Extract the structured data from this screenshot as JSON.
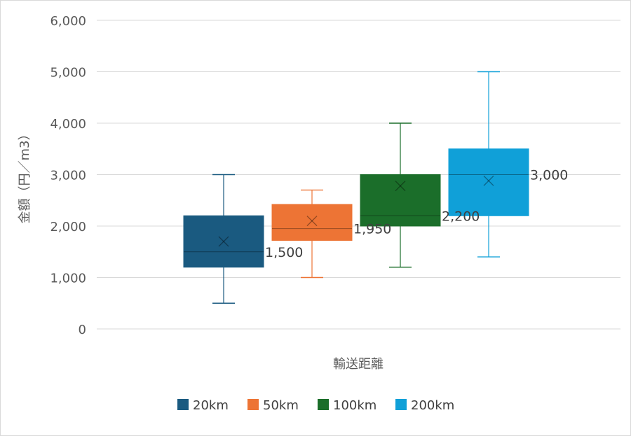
{
  "chart_data": {
    "type": "boxplot",
    "title": "",
    "xlabel": "輸送距離",
    "ylabel": "金額（円／m3）",
    "ylim": [
      0,
      6000
    ],
    "y_ticks": [
      0,
      1000,
      2000,
      3000,
      4000,
      5000,
      6000
    ],
    "y_tick_labels": [
      "0",
      "1,000",
      "2,000",
      "3,000",
      "4,000",
      "5,000",
      "6,000"
    ],
    "grid": true,
    "legend_position": "bottom",
    "series": [
      {
        "name": "20km",
        "color": "#1a5a80",
        "min": 500,
        "q1": 1200,
        "median": 1500,
        "q3": 2200,
        "max": 3000,
        "mean": 1700,
        "median_label": "1,500"
      },
      {
        "name": "50km",
        "color": "#ed7435",
        "min": 1000,
        "q1": 1720,
        "median": 1950,
        "q3": 2420,
        "max": 2700,
        "mean": 2100,
        "median_label": "1,950"
      },
      {
        "name": "100km",
        "color": "#1b6e2a",
        "min": 1200,
        "q1": 2000,
        "median": 2200,
        "q3": 3000,
        "max": 4000,
        "mean": 2780,
        "median_label": "2,200"
      },
      {
        "name": "200km",
        "color": "#10a0d8",
        "min": 1400,
        "q1": 2200,
        "median": 3000,
        "q3": 3500,
        "max": 5000,
        "mean": 2880,
        "median_label": "3,000"
      }
    ]
  }
}
